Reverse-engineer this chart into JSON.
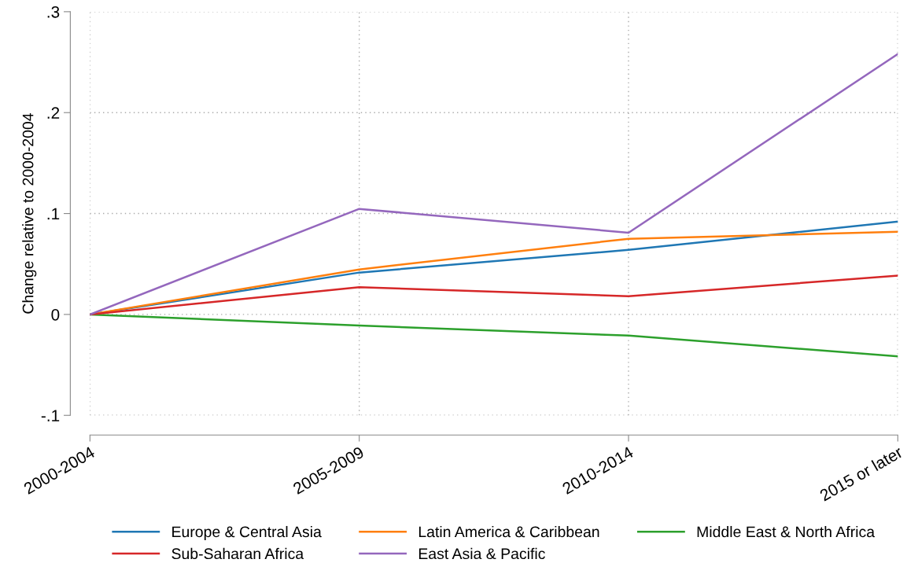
{
  "chart_data": {
    "type": "line",
    "ylabel": "Change relative to 2000-2004",
    "categories": [
      "2000-2004",
      "2005-2009",
      "2010-2014",
      "2015 or later"
    ],
    "series": [
      {
        "name": "Europe & Central Asia",
        "color": "#1f77b4",
        "values": [
          0,
          0.0415,
          0.064,
          0.092
        ]
      },
      {
        "name": "Latin America & Caribbean",
        "color": "#ff7f0e",
        "values": [
          0,
          0.0446,
          0.075,
          0.082
        ]
      },
      {
        "name": "Middle East & North Africa",
        "color": "#2ca02c",
        "values": [
          0,
          -0.011,
          -0.021,
          -0.0415
        ]
      },
      {
        "name": "Sub-Saharan Africa",
        "color": "#d62728",
        "values": [
          0,
          0.027,
          0.018,
          0.0385
        ]
      },
      {
        "name": "East Asia & Pacific",
        "color": "#9467bd",
        "values": [
          0,
          0.1046,
          0.081,
          0.258
        ]
      }
    ],
    "ylim": [
      -0.1,
      0.3
    ],
    "yticks": [
      {
        "value": -0.1,
        "label": "-.1"
      },
      {
        "value": 0,
        "label": "0"
      },
      {
        "value": 0.1,
        "label": ".1"
      },
      {
        "value": 0.2,
        "label": ".2"
      },
      {
        "value": 0.3,
        "label": ".3"
      }
    ],
    "grid": true,
    "legend": "bottom",
    "marker": "none",
    "line_style": "solid"
  }
}
